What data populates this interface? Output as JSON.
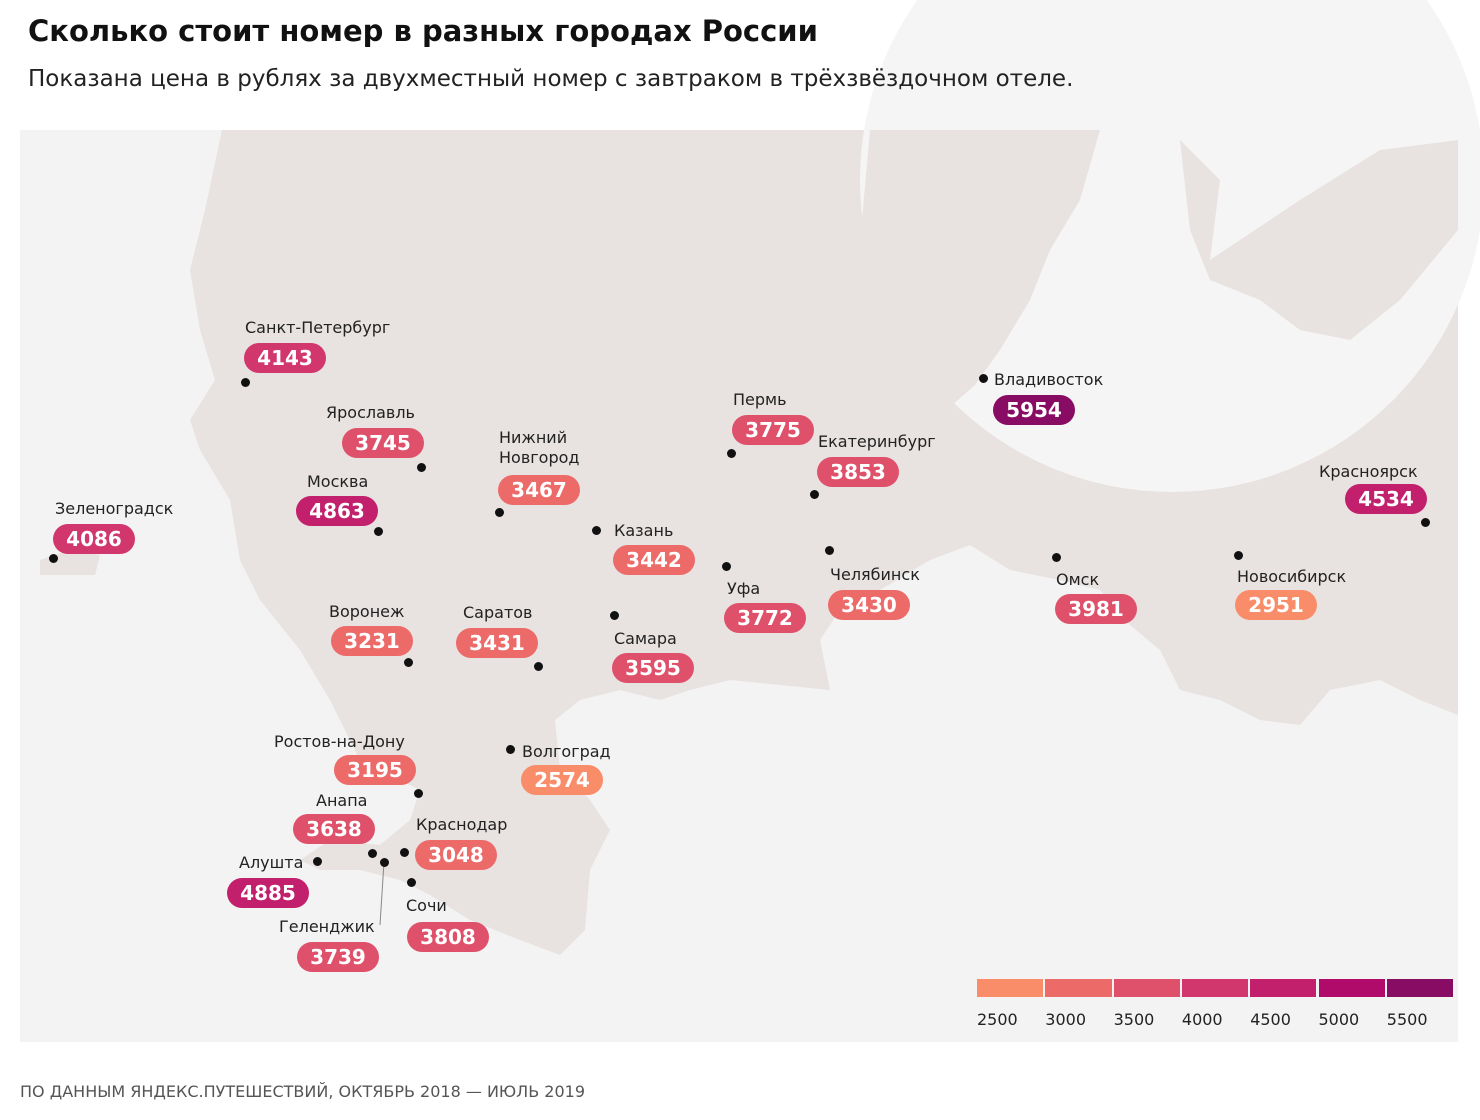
{
  "title": "Сколько стоит номер в разных городах России",
  "subtitle": "Показана цена в рублях за двухместный номер с завтраком в трёхзвёздочном отеле.",
  "source": "ПО ДАННЫМ ЯНДЕКС.ПУТЕШЕСТВИЙ, ОКТЯБРЬ 2018 — ИЮЛЬ 2019",
  "cities": [
    {
      "name": "Санкт-Петербург",
      "price": 4143
    },
    {
      "name": "Ярославль",
      "price": 3745
    },
    {
      "name": "Москва",
      "price": 4863
    },
    {
      "name": "Зеленоградск",
      "price": 4086
    },
    {
      "name": "Нижний Новгород",
      "price": 3467
    },
    {
      "name": "Пермь",
      "price": 3775
    },
    {
      "name": "Екатеринбург",
      "price": 3853
    },
    {
      "name": "Казань",
      "price": 3442
    },
    {
      "name": "Уфа",
      "price": 3772
    },
    {
      "name": "Челябинск",
      "price": 3430
    },
    {
      "name": "Владивосток",
      "price": 5954
    },
    {
      "name": "Красноярск",
      "price": 4534
    },
    {
      "name": "Омск",
      "price": 3981
    },
    {
      "name": "Новосибирск",
      "price": 2951
    },
    {
      "name": "Воронеж",
      "price": 3231
    },
    {
      "name": "Саратов",
      "price": 3431
    },
    {
      "name": "Самара",
      "price": 3595
    },
    {
      "name": "Ростов-на-Дону",
      "price": 3195
    },
    {
      "name": "Волгоград",
      "price": 2574
    },
    {
      "name": "Анапа",
      "price": 3638
    },
    {
      "name": "Краснодар",
      "price": 3048
    },
    {
      "name": "Алушта",
      "price": 4885
    },
    {
      "name": "Сочи",
      "price": 3808
    },
    {
      "name": "Геленджик",
      "price": 3739
    }
  ],
  "legend": {
    "ticks": [
      2500,
      3000,
      3500,
      4000,
      4500,
      5000,
      5500
    ],
    "colors": [
      "#f98d6a",
      "#ec6b69",
      "#df516b",
      "#d1376c",
      "#c21f6c",
      "#b00a6a",
      "#880c63"
    ]
  }
}
